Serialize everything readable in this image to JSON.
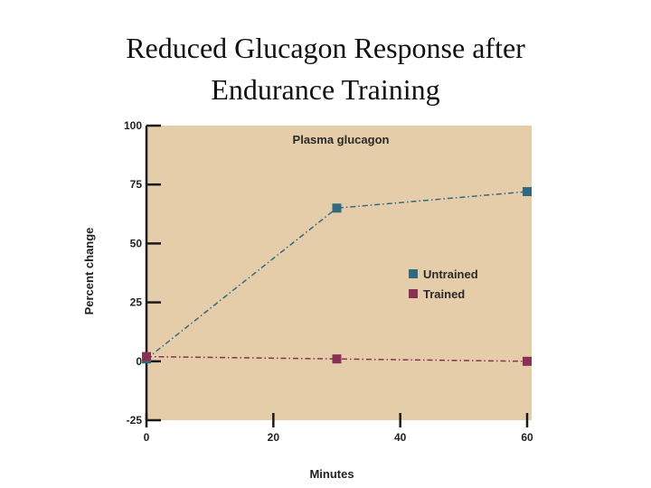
{
  "slide": {
    "title_line1": "Reduced Glucagon Response after",
    "title_line2": "Endurance Training"
  },
  "chart_data": {
    "type": "line",
    "title": "Plasma glucagon",
    "xlabel": "Minutes",
    "ylabel": "Percent change",
    "xlim": [
      0,
      60
    ],
    "ylim": [
      -25,
      100
    ],
    "x_ticks": [
      0,
      20,
      40,
      60
    ],
    "y_ticks": [
      -25,
      0,
      25,
      50,
      75,
      100
    ],
    "grid": false,
    "legend_position": "right",
    "background_color": "#e5cdaa",
    "series": [
      {
        "name": "Untrained",
        "color": "#2e6b80",
        "line_style": "dash-dot",
        "points": [
          [
            0,
            1
          ],
          [
            30,
            65
          ],
          [
            60,
            72
          ]
        ]
      },
      {
        "name": "Trained",
        "color": "#8a2f55",
        "line_style": "dash-dot",
        "points": [
          [
            0,
            2
          ],
          [
            30,
            1
          ],
          [
            60,
            0
          ]
        ]
      }
    ]
  }
}
